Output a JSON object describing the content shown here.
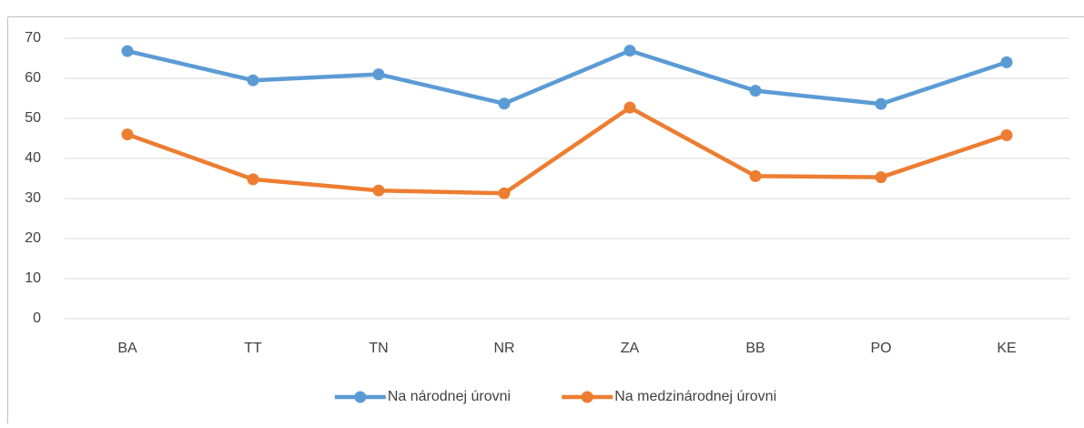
{
  "chart_data": {
    "type": "line",
    "categories": [
      "BA",
      "TT",
      "TN",
      "NR",
      "ZA",
      "BB",
      "PO",
      "KE"
    ],
    "series": [
      {
        "name": "Na národnej úrovni",
        "color": "#5b9bd5",
        "values": [
          66.8,
          59.5,
          61,
          53.7,
          66.9,
          56.9,
          53.6,
          64
        ]
      },
      {
        "name": "Na medzinárodnej úrovni",
        "color": "#ed7d31",
        "values": [
          46,
          34.8,
          32,
          31.3,
          52.7,
          35.6,
          35.3,
          45.8
        ]
      }
    ],
    "ylim": [
      0,
      70
    ],
    "yticks": [
      0,
      10,
      20,
      30,
      40,
      50,
      60,
      70
    ],
    "grid": true,
    "legend": "bottom"
  }
}
